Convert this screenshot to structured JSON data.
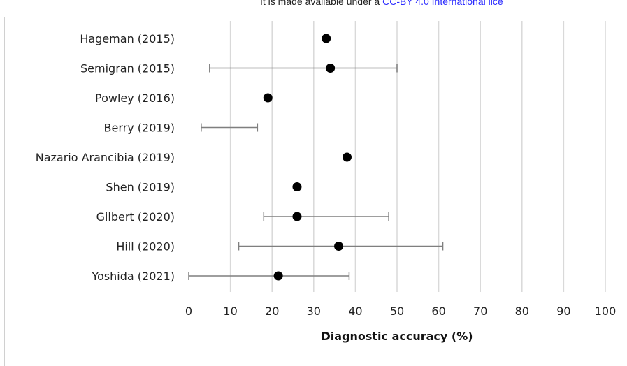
{
  "banner": {
    "text": "It is made available under a ",
    "link_text": "CC-BY 4.0 International lice"
  },
  "chart_data": {
    "type": "scatter",
    "title": "",
    "xlabel": "Diagnostic accuracy (%)",
    "ylabel": "",
    "xlim": [
      0,
      100
    ],
    "xticks": [
      0,
      10,
      20,
      30,
      40,
      50,
      60,
      70,
      80,
      90,
      100
    ],
    "grid": "vertical",
    "studies": [
      {
        "label": "Hageman (2015)",
        "point": 33,
        "ci": null
      },
      {
        "label": "Semigran (2015)",
        "point": 34,
        "ci": [
          5,
          50
        ]
      },
      {
        "label": "Powley (2016)",
        "point": 19,
        "ci": null
      },
      {
        "label": "Berry (2019)",
        "point": null,
        "ci": [
          3,
          16.5
        ]
      },
      {
        "label": "Nazario Arancibia (2019)",
        "point": 38,
        "ci": null
      },
      {
        "label": "Shen (2019)",
        "point": 26,
        "ci": null
      },
      {
        "label": "Gilbert (2020)",
        "point": 26,
        "ci": [
          18,
          48
        ]
      },
      {
        "label": "Hill (2020)",
        "point": 36,
        "ci": [
          12,
          61
        ]
      },
      {
        "label": "Yoshida (2021)",
        "point": 21.5,
        "ci": [
          0,
          38.5
        ]
      }
    ],
    "colors": {
      "point": "#000000",
      "error_bar": "#7f7f7f",
      "grid": "#d9d9d9"
    }
  }
}
